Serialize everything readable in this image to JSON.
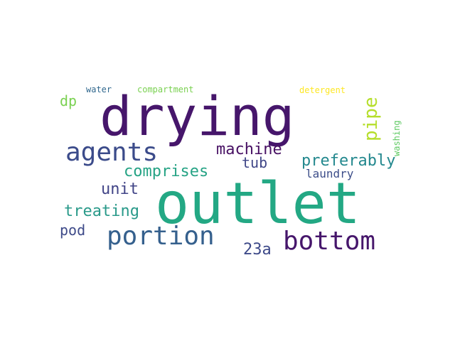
{
  "words": [
    {
      "id": "drying",
      "text": "drying",
      "color": "#46166b"
    },
    {
      "id": "outlet",
      "text": "outlet",
      "color": "#23a884"
    },
    {
      "id": "agents",
      "text": "agents",
      "color": "#3b4b8a"
    },
    {
      "id": "portion",
      "text": "portion",
      "color": "#35608d"
    },
    {
      "id": "bottom",
      "text": "bottom",
      "color": "#46166b"
    },
    {
      "id": "machine",
      "text": "machine",
      "color": "#471063"
    },
    {
      "id": "comprises",
      "text": "comprises",
      "color": "#26a385"
    },
    {
      "id": "tub",
      "text": "tub",
      "color": "#404788"
    },
    {
      "id": "preferably",
      "text": "preferably",
      "color": "#23888e"
    },
    {
      "id": "laundry",
      "text": "laundry",
      "color": "#3d4e8a"
    },
    {
      "id": "unit",
      "text": "unit",
      "color": "#414487"
    },
    {
      "id": "treating",
      "text": "treating",
      "color": "#2a9a8a"
    },
    {
      "id": "pod",
      "text": "pod",
      "color": "#3e4a89"
    },
    {
      "id": "23a",
      "text": "23a",
      "color": "#3e4a89"
    },
    {
      "id": "pipe",
      "text": "pipe",
      "color": "#b5de2b"
    },
    {
      "id": "dp",
      "text": "dp",
      "color": "#7ad151"
    },
    {
      "id": "water",
      "text": "water",
      "color": "#31688e"
    },
    {
      "id": "compartment",
      "text": "compartment",
      "color": "#7ad151"
    },
    {
      "id": "detergent",
      "text": "detergent",
      "color": "#fde725"
    },
    {
      "id": "washing",
      "text": "washing",
      "color": "#5ec962"
    }
  ]
}
